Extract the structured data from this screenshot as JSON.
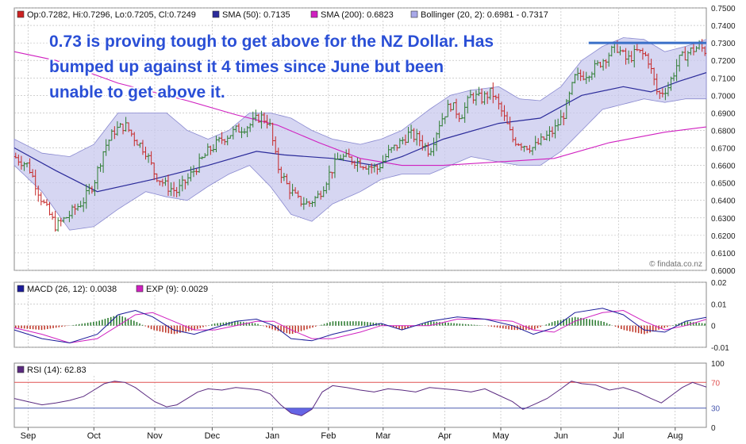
{
  "annotation": {
    "line1": "0.73 is proving tough to get above for the NZ Dollar. Has",
    "line2": "bumped up against it 4 times since June but been",
    "line3": "unable to get above it."
  },
  "watermark": "© findata.co.nz",
  "colors": {
    "candle": "#2e7d32",
    "candle_down": "#c62828",
    "sma50": "#2b2b9a",
    "sma200": "#d020c0",
    "bollinger_fill": "#c8c8ee",
    "bollinger_edge": "#8a8ad0",
    "macd": "#1a1a99",
    "exp": "#d020c0",
    "hist_pos": "#2e7d32",
    "hist_neg": "#c0392b",
    "rsi": "#5a2a80",
    "rsi_over": "#ff5050",
    "rsi_under": "#4a4ae0",
    "annotation": "#2a4fd6",
    "resistance": "#3a6fc8",
    "gridline": "#b4b4b4",
    "rsi70": "#e05050",
    "rsi30": "#4a5ab0"
  },
  "chart_data": [
    {
      "type": "line",
      "panel": "price",
      "legend": [
        {
          "label": "Op:0.7282, Hi:0.7296, Lo:0.7205, Cl:0.7249",
          "color": "#cc2222"
        },
        {
          "label": "SMA (50): 0.7135",
          "color": "#2b2b9a"
        },
        {
          "label": "SMA (200): 0.6823",
          "color": "#d020c0"
        },
        {
          "label": "Bollinger (20, 2): 0.6981 - 0.7317",
          "color": "#a8a8e8"
        }
      ],
      "ylim": [
        0.6,
        0.75
      ],
      "yticks": [
        "0.7500",
        "0.7400",
        "0.7300",
        "0.7200",
        "0.7100",
        "0.7000",
        "0.6900",
        "0.6800",
        "0.6700",
        "0.6600",
        "0.6500",
        "0.6400",
        "0.6300",
        "0.6200",
        "0.6100",
        "0.6000"
      ],
      "xticks": [
        {
          "label": "Sep",
          "t": 0.02
        },
        {
          "label": "Oct",
          "t": 0.115
        },
        {
          "label": "Nov",
          "t": 0.203
        },
        {
          "label": "Dec",
          "t": 0.286
        },
        {
          "label": "Jan",
          "t": 0.373
        },
        {
          "label": "Feb",
          "t": 0.454
        },
        {
          "label": "Mar",
          "t": 0.533
        },
        {
          "label": "Apr",
          "t": 0.622
        },
        {
          "label": "May",
          "t": 0.703
        },
        {
          "label": "Jun",
          "t": 0.79
        },
        {
          "label": "Jul",
          "t": 0.873
        },
        {
          "label": "Aug",
          "t": 0.955
        }
      ],
      "close_keypoints": [
        [
          0.0,
          0.665
        ],
        [
          0.02,
          0.66
        ],
        [
          0.04,
          0.64
        ],
        [
          0.06,
          0.625
        ],
        [
          0.08,
          0.632
        ],
        [
          0.1,
          0.64
        ],
        [
          0.115,
          0.65
        ],
        [
          0.13,
          0.67
        ],
        [
          0.145,
          0.68
        ],
        [
          0.16,
          0.683
        ],
        [
          0.175,
          0.675
        ],
        [
          0.19,
          0.668
        ],
        [
          0.203,
          0.655
        ],
        [
          0.22,
          0.648
        ],
        [
          0.235,
          0.645
        ],
        [
          0.25,
          0.652
        ],
        [
          0.265,
          0.66
        ],
        [
          0.28,
          0.668
        ],
        [
          0.3,
          0.675
        ],
        [
          0.32,
          0.68
        ],
        [
          0.34,
          0.683
        ],
        [
          0.355,
          0.688
        ],
        [
          0.368,
          0.685
        ],
        [
          0.38,
          0.66
        ],
        [
          0.395,
          0.648
        ],
        [
          0.41,
          0.64
        ],
        [
          0.425,
          0.638
        ],
        [
          0.44,
          0.643
        ],
        [
          0.455,
          0.655
        ],
        [
          0.47,
          0.665
        ],
        [
          0.49,
          0.663
        ],
        [
          0.51,
          0.66
        ],
        [
          0.525,
          0.658
        ],
        [
          0.54,
          0.667
        ],
        [
          0.555,
          0.672
        ],
        [
          0.57,
          0.678
        ],
        [
          0.585,
          0.675
        ],
        [
          0.6,
          0.668
        ],
        [
          0.615,
          0.685
        ],
        [
          0.63,
          0.695
        ],
        [
          0.645,
          0.688
        ],
        [
          0.66,
          0.7
        ],
        [
          0.675,
          0.698
        ],
        [
          0.69,
          0.702
        ],
        [
          0.705,
          0.69
        ],
        [
          0.72,
          0.675
        ],
        [
          0.735,
          0.672
        ],
        [
          0.75,
          0.67
        ],
        [
          0.765,
          0.675
        ],
        [
          0.78,
          0.68
        ],
        [
          0.795,
          0.69
        ],
        [
          0.81,
          0.71
        ],
        [
          0.825,
          0.712
        ],
        [
          0.84,
          0.716
        ],
        [
          0.855,
          0.722
        ],
        [
          0.87,
          0.728
        ],
        [
          0.885,
          0.72
        ],
        [
          0.9,
          0.725
        ],
        [
          0.915,
          0.722
        ],
        [
          0.93,
          0.7
        ],
        [
          0.945,
          0.705
        ],
        [
          0.96,
          0.72
        ],
        [
          0.975,
          0.725
        ],
        [
          0.99,
          0.728
        ],
        [
          1.0,
          0.725
        ]
      ],
      "sma50": [
        [
          0.0,
          0.67
        ],
        [
          0.06,
          0.657
        ],
        [
          0.12,
          0.645
        ],
        [
          0.2,
          0.652
        ],
        [
          0.28,
          0.66
        ],
        [
          0.35,
          0.668
        ],
        [
          0.39,
          0.666
        ],
        [
          0.46,
          0.664
        ],
        [
          0.52,
          0.66
        ],
        [
          0.56,
          0.665
        ],
        [
          0.62,
          0.675
        ],
        [
          0.7,
          0.684
        ],
        [
          0.76,
          0.687
        ],
        [
          0.82,
          0.7
        ],
        [
          0.88,
          0.705
        ],
        [
          0.92,
          0.702
        ],
        [
          0.96,
          0.708
        ],
        [
          1.0,
          0.713
        ]
      ],
      "sma200": [
        [
          0.0,
          0.725
        ],
        [
          0.06,
          0.72
        ],
        [
          0.15,
          0.707
        ],
        [
          0.25,
          0.697
        ],
        [
          0.32,
          0.689
        ],
        [
          0.38,
          0.683
        ],
        [
          0.44,
          0.673
        ],
        [
          0.5,
          0.664
        ],
        [
          0.56,
          0.66
        ],
        [
          0.62,
          0.66
        ],
        [
          0.7,
          0.662
        ],
        [
          0.78,
          0.664
        ],
        [
          0.86,
          0.673
        ],
        [
          0.94,
          0.679
        ],
        [
          1.0,
          0.682
        ]
      ],
      "boll_upper": [
        [
          0.0,
          0.675
        ],
        [
          0.04,
          0.667
        ],
        [
          0.08,
          0.665
        ],
        [
          0.115,
          0.672
        ],
        [
          0.15,
          0.69
        ],
        [
          0.19,
          0.69
        ],
        [
          0.22,
          0.69
        ],
        [
          0.25,
          0.68
        ],
        [
          0.28,
          0.675
        ],
        [
          0.31,
          0.68
        ],
        [
          0.34,
          0.69
        ],
        [
          0.37,
          0.69
        ],
        [
          0.4,
          0.687
        ],
        [
          0.43,
          0.68
        ],
        [
          0.46,
          0.675
        ],
        [
          0.5,
          0.672
        ],
        [
          0.53,
          0.675
        ],
        [
          0.56,
          0.68
        ],
        [
          0.6,
          0.692
        ],
        [
          0.63,
          0.7
        ],
        [
          0.66,
          0.703
        ],
        [
          0.7,
          0.705
        ],
        [
          0.73,
          0.698
        ],
        [
          0.76,
          0.697
        ],
        [
          0.79,
          0.705
        ],
        [
          0.82,
          0.72
        ],
        [
          0.85,
          0.728
        ],
        [
          0.88,
          0.733
        ],
        [
          0.91,
          0.732
        ],
        [
          0.94,
          0.725
        ],
        [
          0.97,
          0.728
        ],
        [
          1.0,
          0.732
        ]
      ],
      "boll_lower": [
        [
          0.0,
          0.66
        ],
        [
          0.04,
          0.645
        ],
        [
          0.08,
          0.623
        ],
        [
          0.115,
          0.625
        ],
        [
          0.15,
          0.635
        ],
        [
          0.19,
          0.645
        ],
        [
          0.22,
          0.642
        ],
        [
          0.25,
          0.64
        ],
        [
          0.28,
          0.648
        ],
        [
          0.31,
          0.655
        ],
        [
          0.34,
          0.66
        ],
        [
          0.37,
          0.648
        ],
        [
          0.4,
          0.632
        ],
        [
          0.43,
          0.628
        ],
        [
          0.46,
          0.638
        ],
        [
          0.5,
          0.645
        ],
        [
          0.53,
          0.652
        ],
        [
          0.56,
          0.655
        ],
        [
          0.6,
          0.655
        ],
        [
          0.63,
          0.66
        ],
        [
          0.66,
          0.665
        ],
        [
          0.7,
          0.662
        ],
        [
          0.73,
          0.66
        ],
        [
          0.76,
          0.66
        ],
        [
          0.79,
          0.668
        ],
        [
          0.82,
          0.68
        ],
        [
          0.85,
          0.692
        ],
        [
          0.88,
          0.695
        ],
        [
          0.91,
          0.698
        ],
        [
          0.94,
          0.696
        ],
        [
          0.97,
          0.698
        ],
        [
          1.0,
          0.698
        ]
      ],
      "resistance": {
        "y": 0.73,
        "t_start": 0.83,
        "t_end": 1.0
      }
    },
    {
      "type": "line",
      "panel": "macd",
      "legend": [
        {
          "label": "MACD (26, 12): 0.0038",
          "color": "#1a1a99"
        },
        {
          "label": "EXP (9): 0.0029",
          "color": "#d020c0"
        }
      ],
      "ylim": [
        -0.01,
        0.02
      ],
      "yticks": [
        "0.02",
        "0.01",
        "0",
        "-0.01"
      ],
      "macd": [
        [
          0.0,
          -0.002
        ],
        [
          0.04,
          -0.006
        ],
        [
          0.08,
          -0.008
        ],
        [
          0.12,
          -0.004
        ],
        [
          0.15,
          0.005
        ],
        [
          0.175,
          0.007
        ],
        [
          0.2,
          0.004
        ],
        [
          0.23,
          -0.002
        ],
        [
          0.26,
          -0.004
        ],
        [
          0.29,
          -0.001
        ],
        [
          0.32,
          0.002
        ],
        [
          0.35,
          0.003
        ],
        [
          0.375,
          0.0
        ],
        [
          0.4,
          -0.006
        ],
        [
          0.43,
          -0.007
        ],
        [
          0.46,
          -0.004
        ],
        [
          0.5,
          -0.001
        ],
        [
          0.53,
          0.001
        ],
        [
          0.56,
          -0.002
        ],
        [
          0.6,
          0.002
        ],
        [
          0.64,
          0.004
        ],
        [
          0.68,
          0.003
        ],
        [
          0.72,
          0.0
        ],
        [
          0.75,
          -0.004
        ],
        [
          0.78,
          -0.001
        ],
        [
          0.81,
          0.006
        ],
        [
          0.85,
          0.008
        ],
        [
          0.88,
          0.005
        ],
        [
          0.91,
          -0.002
        ],
        [
          0.94,
          -0.003
        ],
        [
          0.97,
          0.002
        ],
        [
          1.0,
          0.0038
        ]
      ],
      "exp": [
        [
          0.0,
          -0.001
        ],
        [
          0.04,
          -0.004
        ],
        [
          0.08,
          -0.008
        ],
        [
          0.12,
          -0.006
        ],
        [
          0.15,
          0.0
        ],
        [
          0.175,
          0.005
        ],
        [
          0.2,
          0.006
        ],
        [
          0.23,
          0.002
        ],
        [
          0.26,
          -0.002
        ],
        [
          0.29,
          -0.002
        ],
        [
          0.32,
          0.0
        ],
        [
          0.35,
          0.002
        ],
        [
          0.375,
          0.002
        ],
        [
          0.4,
          -0.002
        ],
        [
          0.43,
          -0.006
        ],
        [
          0.46,
          -0.006
        ],
        [
          0.5,
          -0.003
        ],
        [
          0.53,
          0.0
        ],
        [
          0.56,
          0.0
        ],
        [
          0.6,
          0.0
        ],
        [
          0.64,
          0.003
        ],
        [
          0.68,
          0.003
        ],
        [
          0.72,
          0.002
        ],
        [
          0.75,
          -0.002
        ],
        [
          0.78,
          -0.003
        ],
        [
          0.81,
          0.002
        ],
        [
          0.85,
          0.006
        ],
        [
          0.88,
          0.007
        ],
        [
          0.91,
          0.002
        ],
        [
          0.94,
          -0.002
        ],
        [
          0.97,
          0.0
        ],
        [
          1.0,
          0.0029
        ]
      ]
    },
    {
      "type": "line",
      "panel": "rsi",
      "legend": [
        {
          "label": "RSI (14): 62.83",
          "color": "#5a2a80"
        }
      ],
      "ylim": [
        0,
        100
      ],
      "yticks": [
        "100",
        "70",
        "30",
        "0"
      ],
      "levels": [
        70,
        30
      ],
      "rsi": [
        [
          0.0,
          45
        ],
        [
          0.02,
          40
        ],
        [
          0.04,
          35
        ],
        [
          0.06,
          38
        ],
        [
          0.08,
          42
        ],
        [
          0.1,
          48
        ],
        [
          0.115,
          58
        ],
        [
          0.13,
          68
        ],
        [
          0.145,
          72
        ],
        [
          0.16,
          70
        ],
        [
          0.175,
          62
        ],
        [
          0.19,
          50
        ],
        [
          0.203,
          40
        ],
        [
          0.22,
          32
        ],
        [
          0.235,
          35
        ],
        [
          0.25,
          45
        ],
        [
          0.265,
          55
        ],
        [
          0.28,
          60
        ],
        [
          0.3,
          58
        ],
        [
          0.32,
          62
        ],
        [
          0.34,
          60
        ],
        [
          0.355,
          58
        ],
        [
          0.37,
          52
        ],
        [
          0.385,
          35
        ],
        [
          0.4,
          22
        ],
        [
          0.415,
          18
        ],
        [
          0.43,
          28
        ],
        [
          0.445,
          55
        ],
        [
          0.46,
          65
        ],
        [
          0.48,
          62
        ],
        [
          0.5,
          58
        ],
        [
          0.52,
          55
        ],
        [
          0.54,
          60
        ],
        [
          0.56,
          58
        ],
        [
          0.58,
          55
        ],
        [
          0.6,
          62
        ],
        [
          0.62,
          60
        ],
        [
          0.64,
          58
        ],
        [
          0.66,
          55
        ],
        [
          0.68,
          60
        ],
        [
          0.7,
          50
        ],
        [
          0.72,
          40
        ],
        [
          0.735,
          28
        ],
        [
          0.75,
          35
        ],
        [
          0.77,
          45
        ],
        [
          0.79,
          60
        ],
        [
          0.805,
          72
        ],
        [
          0.82,
          68
        ],
        [
          0.84,
          66
        ],
        [
          0.86,
          58
        ],
        [
          0.88,
          62
        ],
        [
          0.9,
          55
        ],
        [
          0.92,
          45
        ],
        [
          0.935,
          38
        ],
        [
          0.95,
          50
        ],
        [
          0.965,
          62
        ],
        [
          0.98,
          70
        ],
        [
          1.0,
          62.83
        ]
      ]
    }
  ]
}
